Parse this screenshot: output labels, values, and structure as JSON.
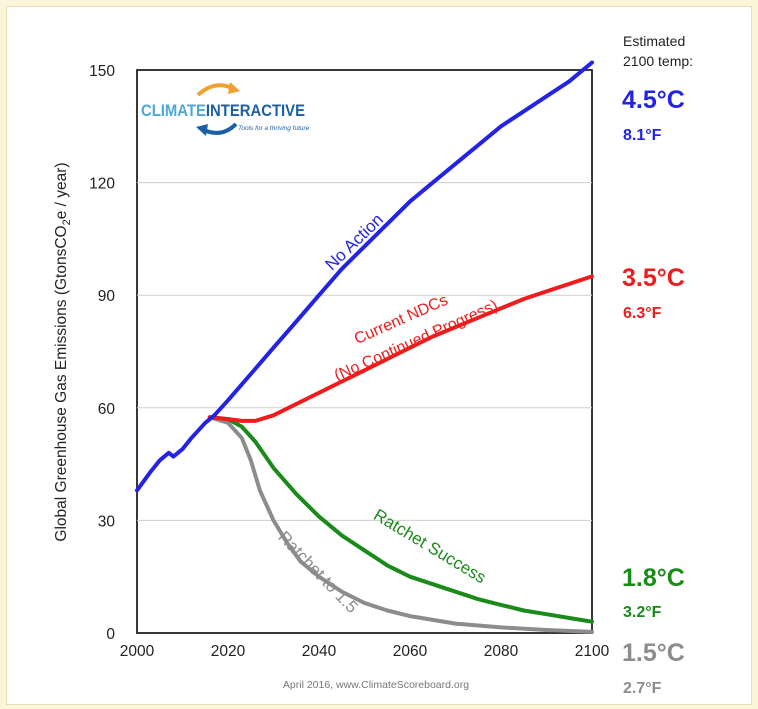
{
  "chart_data": {
    "type": "line",
    "xlabel": "",
    "ylabel": "Global Greenhouse Gas Emissions  (GtonsCO",
    "ylabel_sub": "2",
    "ylabel_tail": "e / year)",
    "xlim": [
      2000,
      2100
    ],
    "ylim": [
      0,
      150
    ],
    "x_ticks": [
      "2000",
      "2020",
      "2040",
      "2060",
      "2080",
      "2100"
    ],
    "y_ticks": [
      "0",
      "30",
      "60",
      "90",
      "120",
      "150"
    ],
    "grid": true,
    "legend": "none",
    "source_note": "April 2016, www.ClimateScoreboard.org",
    "temp_header": [
      "Estimated",
      "2100 temp:"
    ],
    "series": [
      {
        "name": "No Action",
        "color": "#2323e6",
        "temp_c": "4.5°C",
        "temp_f": "8.1°F",
        "points": [
          [
            2000,
            38
          ],
          [
            2003,
            43
          ],
          [
            2005,
            46
          ],
          [
            2007,
            48
          ],
          [
            2008,
            47
          ],
          [
            2010,
            49
          ],
          [
            2012,
            52
          ],
          [
            2015,
            56
          ],
          [
            2017,
            58
          ],
          [
            2020,
            62
          ],
          [
            2025,
            69
          ],
          [
            2030,
            76
          ],
          [
            2035,
            83
          ],
          [
            2040,
            90
          ],
          [
            2045,
            97
          ],
          [
            2050,
            103
          ],
          [
            2055,
            109
          ],
          [
            2060,
            115
          ],
          [
            2065,
            120
          ],
          [
            2070,
            125
          ],
          [
            2075,
            130
          ],
          [
            2080,
            135
          ],
          [
            2085,
            139
          ],
          [
            2090,
            143
          ],
          [
            2095,
            147
          ],
          [
            2100,
            152
          ]
        ]
      },
      {
        "name": "Current NDCs (No Continued Progress)",
        "label_lines": [
          "Current NDCs",
          "(No Continued Progress)"
        ],
        "color": "#ee1c1c",
        "temp_c": "3.5°C",
        "temp_f": "6.3°F",
        "points": [
          [
            2016,
            57.5
          ],
          [
            2020,
            57
          ],
          [
            2023,
            56.5
          ],
          [
            2026,
            56.5
          ],
          [
            2030,
            58
          ],
          [
            2035,
            61
          ],
          [
            2040,
            64
          ],
          [
            2045,
            67
          ],
          [
            2050,
            70
          ],
          [
            2055,
            73
          ],
          [
            2060,
            76
          ],
          [
            2065,
            79
          ],
          [
            2070,
            81.5
          ],
          [
            2075,
            84
          ],
          [
            2080,
            86.5
          ],
          [
            2085,
            89
          ],
          [
            2090,
            91
          ],
          [
            2095,
            93
          ],
          [
            2100,
            95
          ]
        ]
      },
      {
        "name": "Ratchet Success",
        "color": "#1a8a1a",
        "temp_c": "1.8°C",
        "temp_f": "3.2°F",
        "points": [
          [
            2016,
            57.5
          ],
          [
            2020,
            57
          ],
          [
            2023,
            55
          ],
          [
            2026,
            51
          ],
          [
            2030,
            44
          ],
          [
            2035,
            37
          ],
          [
            2040,
            31
          ],
          [
            2045,
            26
          ],
          [
            2050,
            22
          ],
          [
            2055,
            18
          ],
          [
            2060,
            15
          ],
          [
            2065,
            13
          ],
          [
            2070,
            11
          ],
          [
            2075,
            9
          ],
          [
            2080,
            7.5
          ],
          [
            2085,
            6
          ],
          [
            2090,
            5
          ],
          [
            2095,
            4
          ],
          [
            2100,
            3
          ]
        ]
      },
      {
        "name": "Ratchet to 1.5",
        "color": "#8c8c8c",
        "temp_c": "1.5°C",
        "temp_f": "2.7°F",
        "points": [
          [
            2016,
            57.5
          ],
          [
            2020,
            56
          ],
          [
            2023,
            52
          ],
          [
            2025,
            46
          ],
          [
            2027,
            38
          ],
          [
            2030,
            30
          ],
          [
            2033,
            24
          ],
          [
            2036,
            19
          ],
          [
            2040,
            15
          ],
          [
            2045,
            11
          ],
          [
            2050,
            8
          ],
          [
            2055,
            6
          ],
          [
            2060,
            4.5
          ],
          [
            2065,
            3.5
          ],
          [
            2070,
            2.5
          ],
          [
            2075,
            2
          ],
          [
            2080,
            1.5
          ],
          [
            2090,
            0.8
          ],
          [
            2100,
            0.3
          ]
        ]
      }
    ]
  },
  "logo": {
    "brand_a": "CLIMATE",
    "brand_b": "INTERACTIVE",
    "tagline": "Tools for a thriving future",
    "brand_a_color": "#4ba8d8",
    "brand_b_color": "#1d5fa3",
    "arrow_color": "#f0a030"
  }
}
